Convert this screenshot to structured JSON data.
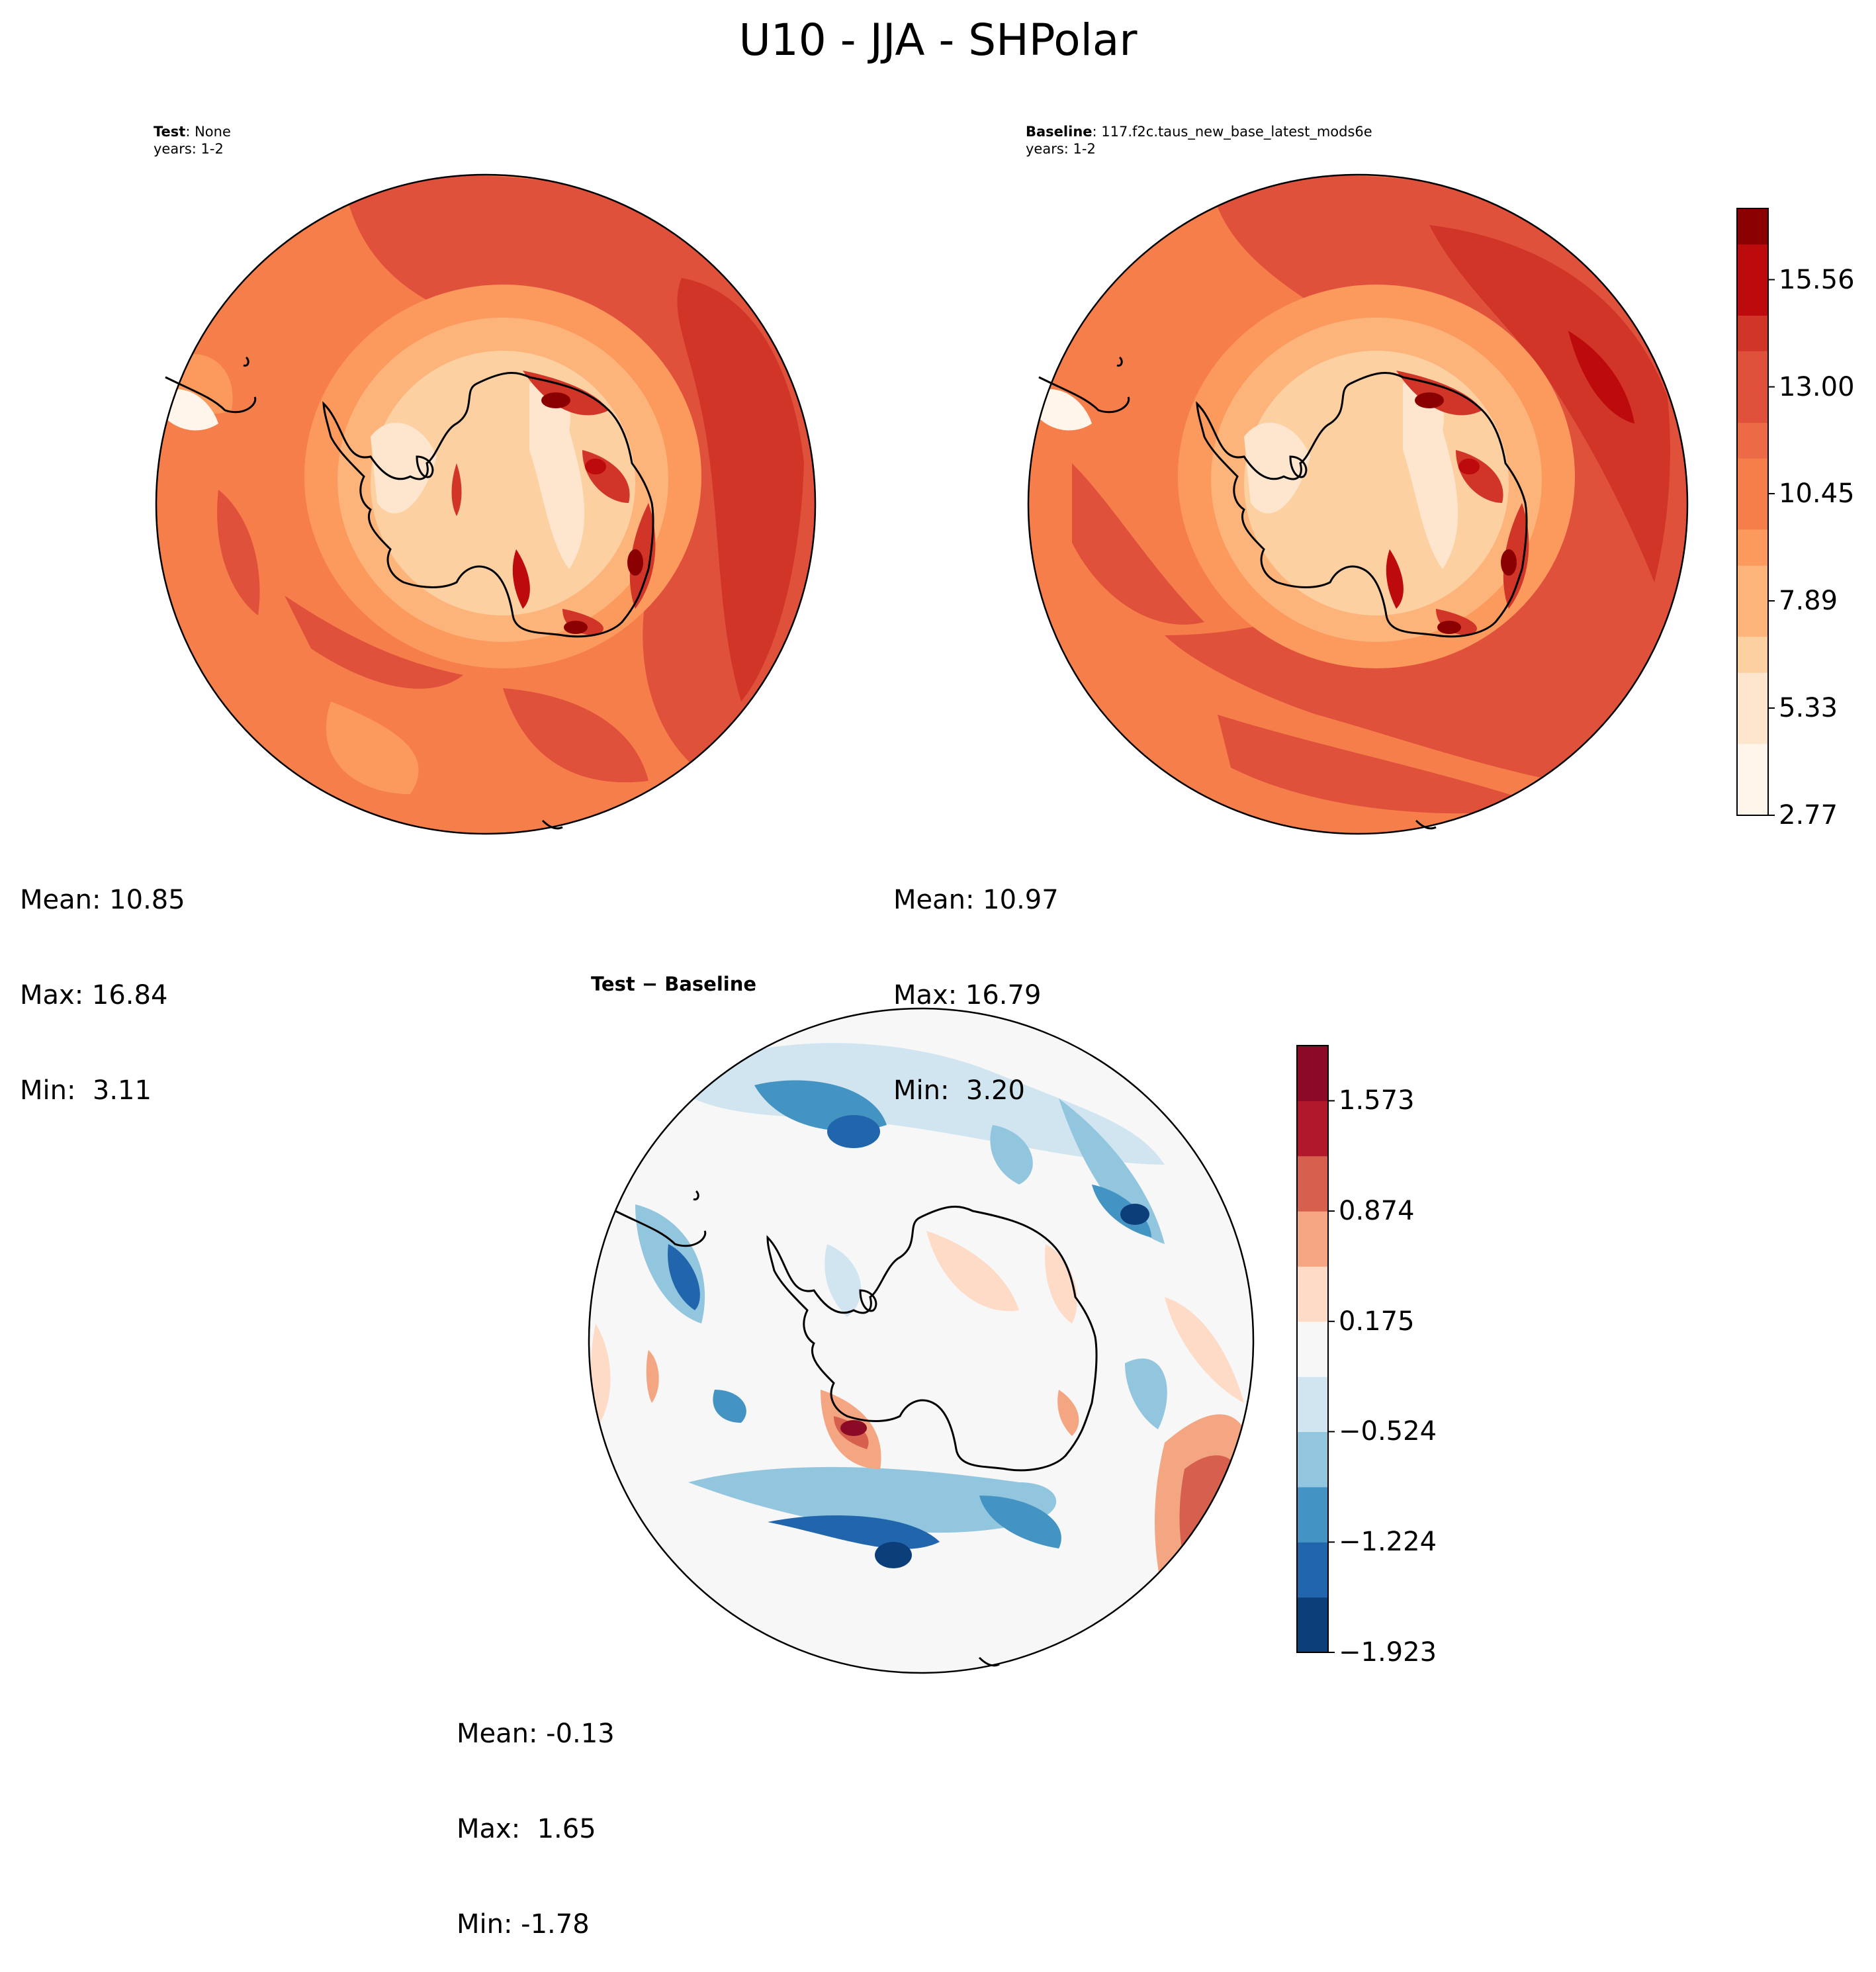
{
  "figure_title": "U10 - JJA - SHPolar",
  "panels": {
    "test": {
      "label_bold": "Test",
      "label_rest": ": None",
      "years": "years: 1-2",
      "stats": {
        "mean": "Mean: 10.85",
        "max": "Max: 16.84",
        "min": "Min:  3.11"
      }
    },
    "baseline": {
      "label_bold": "Baseline",
      "label_rest": ": 117.f2c.taus_new_base_latest_mods6e",
      "years": "years: 1-2",
      "stats": {
        "mean": "Mean: 10.97",
        "max": "Max: 16.79",
        "min": "Min:  3.20"
      }
    },
    "diff": {
      "title": "Test − Baseline",
      "stats": {
        "mean": "Mean: -0.13",
        "max": "Max:  1.65",
        "min": "Min: -1.78"
      }
    }
  },
  "chart_data": [
    {
      "type": "heatmap",
      "projection": "south polar stereographic",
      "variable": "U10",
      "season": "JJA",
      "region": "SHPolar",
      "panels": [
        "Test: None",
        "Baseline: 117.f2c.taus_new_base_latest_mods6e"
      ],
      "colorbar": {
        "ticks": [
          "15.56",
          "13.00",
          "10.45",
          "7.89",
          "5.33",
          "2.77"
        ],
        "levels": [
          2.77,
          3.62,
          4.48,
          5.33,
          6.18,
          7.04,
          7.89,
          8.74,
          9.6,
          10.45,
          11.3,
          12.15,
          13.0,
          13.86,
          14.71,
          15.56,
          16.41,
          17.26
        ],
        "colors": [
          "#fff5eb",
          "#fee6ce",
          "#fdd0a2",
          "#fdb47b",
          "#fc9a5e",
          "#f67e4b",
          "#ec6a46",
          "#e0513c",
          "#d03528",
          "#bd0a0c",
          "#8b0000"
        ]
      }
    },
    {
      "type": "heatmap",
      "projection": "south polar stereographic",
      "title": "Test − Baseline",
      "colorbar": {
        "ticks": [
          "1.573",
          "0.874",
          "0.175",
          "−0.524",
          "−1.224",
          "−1.923"
        ],
        "levels": [
          -1.923,
          -1.573,
          -1.224,
          -0.874,
          -0.524,
          -0.175,
          0.175,
          0.524,
          0.874,
          1.224,
          1.573,
          1.923
        ],
        "colors": [
          "#0c3f7a",
          "#2166ac",
          "#4393c3",
          "#92c5de",
          "#d1e5f0",
          "#f7f7f7",
          "#fddbc7",
          "#f4a582",
          "#d6604d",
          "#b2182b",
          "#8b0a26"
        ]
      }
    }
  ]
}
